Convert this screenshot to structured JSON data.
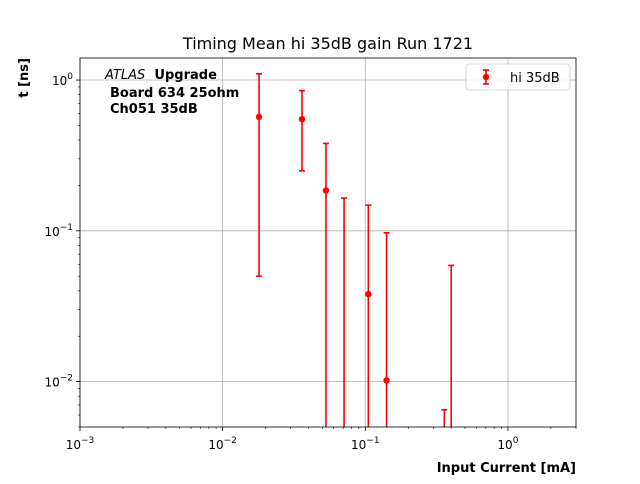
{
  "chart_data": {
    "type": "scatter",
    "title": "Timing Mean hi 35dB gain Run 1721",
    "xlabel": "Input Current [mA]",
    "ylabel": "t [ns]",
    "xscale": "log",
    "yscale": "log",
    "xlim": [
      0.001,
      3
    ],
    "ylim": [
      0.005,
      1.4
    ],
    "grid": true,
    "x_tick_labels": [
      "10^-3",
      "10^-2",
      "10^-1",
      "10^0"
    ],
    "y_tick_labels": [
      "10^-2",
      "10^-1",
      "10^0"
    ],
    "annotations": {
      "atlas_italic": "ATLAS",
      "atlas_bold": "Upgrade",
      "line2": "Board 634 25ohm",
      "line3": "Ch051 35dB"
    },
    "legend": {
      "position": "top-right"
    },
    "series": [
      {
        "name": "hi 35dB",
        "color": "#ff0000",
        "points": [
          {
            "x": 0.018,
            "y": 0.57,
            "yerr_low": 0.05,
            "yerr_high": 1.1
          },
          {
            "x": 0.036,
            "y": 0.55,
            "yerr_low": 0.25,
            "yerr_high": 0.85
          },
          {
            "x": 0.053,
            "y": 0.185,
            "yerr_low": 0.004,
            "yerr_high": 0.38
          },
          {
            "x": 0.071,
            "y": null,
            "yerr_low": 0.004,
            "yerr_high": 0.165
          },
          {
            "x": 0.105,
            "y": 0.038,
            "yerr_low": 0.004,
            "yerr_high": 0.148
          },
          {
            "x": 0.141,
            "y": 0.0102,
            "yerr_low": 0.004,
            "yerr_high": 0.097
          },
          {
            "x": 0.358,
            "y": null,
            "yerr_low": 0.004,
            "yerr_high": 0.0065
          },
          {
            "x": 0.4,
            "y": null,
            "yerr_low": 0.004,
            "yerr_high": 0.059
          }
        ]
      }
    ]
  }
}
